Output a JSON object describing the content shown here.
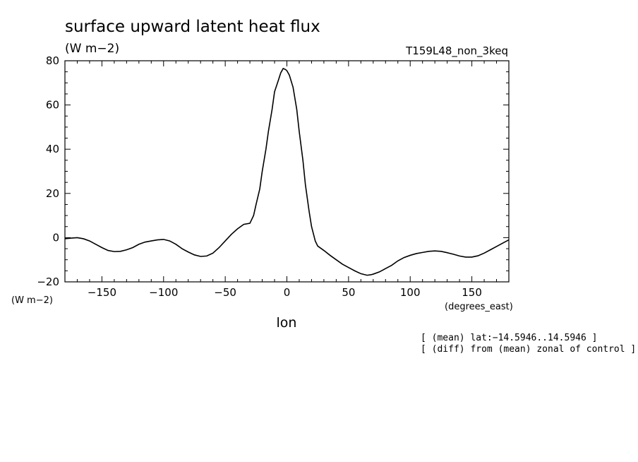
{
  "chart_data": {
    "type": "line",
    "title": "surface upward latent heat flux",
    "units": "(W m−2)",
    "run_label": "T159L48_non_3keq",
    "xlabel": "lon",
    "x_units": "(degrees_east)",
    "y_units": "(W m−2)",
    "xlim": [
      -180,
      180
    ],
    "ylim": [
      -20,
      80
    ],
    "xticks": [
      -150,
      -100,
      -50,
      0,
      50,
      100,
      150
    ],
    "xtick_labels": [
      "−150",
      "−100",
      "−50",
      "0",
      "50",
      "100",
      "150"
    ],
    "yticks": [
      -20,
      0,
      20,
      40,
      60,
      80
    ],
    "ytick_labels": [
      "−20",
      "0",
      "20",
      "40",
      "60",
      "80"
    ],
    "annotations": [
      "[ (mean) lat:−14.5946..14.5946 ]",
      "[ (diff) from (mean) zonal of control ]"
    ],
    "grid": false,
    "series": [
      {
        "color": "#000000",
        "x": [
          -180,
          -175,
          -170,
          -165,
          -160,
          -155,
          -150,
          -145,
          -140,
          -135,
          -130,
          -125,
          -120,
          -115,
          -110,
          -105,
          -100,
          -95,
          -90,
          -85,
          -80,
          -75,
          -70,
          -65,
          -60,
          -55,
          -50,
          -45,
          -40,
          -35,
          -30,
          -27,
          -25,
          -22,
          -20,
          -17,
          -15,
          -12,
          -10,
          -7,
          -5,
          -3,
          -1,
          0,
          2,
          5,
          8,
          10,
          13,
          15,
          18,
          20,
          23,
          25,
          28,
          30,
          35,
          40,
          45,
          50,
          55,
          60,
          65,
          68,
          70,
          75,
          80,
          85,
          90,
          95,
          100,
          105,
          110,
          115,
          120,
          125,
          130,
          135,
          140,
          145,
          150,
          155,
          160,
          165,
          170,
          175,
          180
        ],
        "y": [
          -0.5,
          -0.2,
          0,
          -0.5,
          -1.5,
          -3,
          -4.5,
          -5.8,
          -6.3,
          -6.2,
          -5.5,
          -4.5,
          -3,
          -2,
          -1.5,
          -1,
          -0.8,
          -1.5,
          -3,
          -5,
          -6.5,
          -7.8,
          -8.5,
          -8.3,
          -7,
          -4.5,
          -1.5,
          1.5,
          4,
          6,
          6.5,
          10,
          15,
          22,
          30,
          40,
          48,
          58,
          66,
          71,
          74.5,
          76.5,
          76,
          75.5,
          73.5,
          68,
          58,
          48,
          35,
          24,
          12,
          5,
          -1.5,
          -3.8,
          -5,
          -5.8,
          -8,
          -10,
          -12,
          -13.5,
          -15,
          -16.3,
          -17,
          -16.8,
          -16.5,
          -15.5,
          -14,
          -12.5,
          -10.5,
          -9,
          -8,
          -7.2,
          -6.7,
          -6.2,
          -6,
          -6.2,
          -6.8,
          -7.5,
          -8.3,
          -8.8,
          -8.8,
          -8.2,
          -7,
          -5.5,
          -4,
          -2.5,
          -1
        ]
      }
    ]
  }
}
